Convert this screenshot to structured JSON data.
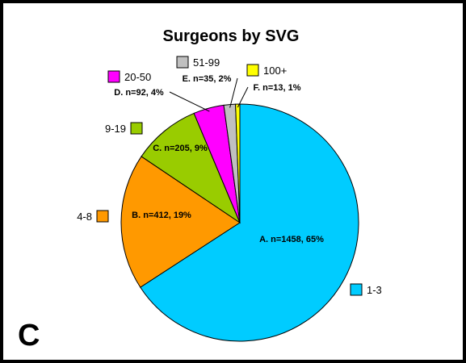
{
  "panel_letter": "C",
  "chart_data": {
    "type": "pie",
    "title": "Surgeons by SVG",
    "slices": [
      {
        "id": "A",
        "category": "1-3",
        "n": 1458,
        "percent": 65,
        "label": "A. n=1458, 65%",
        "color": "#00ccff"
      },
      {
        "id": "B",
        "category": "4-8",
        "n": 412,
        "percent": 19,
        "label": "B. n=412, 19%",
        "color": "#ff9900"
      },
      {
        "id": "C",
        "category": "9-19",
        "n": 205,
        "percent": 9,
        "label": "C. n=205, 9%",
        "color": "#99cc00"
      },
      {
        "id": "D",
        "category": "20-50",
        "n": 92,
        "percent": 4,
        "label": "D. n=92, 4%",
        "color": "#ff00ff"
      },
      {
        "id": "E",
        "category": "51-99",
        "n": 35,
        "percent": 2,
        "label": "E. n=35, 2%",
        "color": "#c0c0c0"
      },
      {
        "id": "F",
        "category": "100+",
        "n": 13,
        "percent": 1,
        "label": "F. n=13, 1%",
        "color": "#ffff00"
      }
    ]
  }
}
